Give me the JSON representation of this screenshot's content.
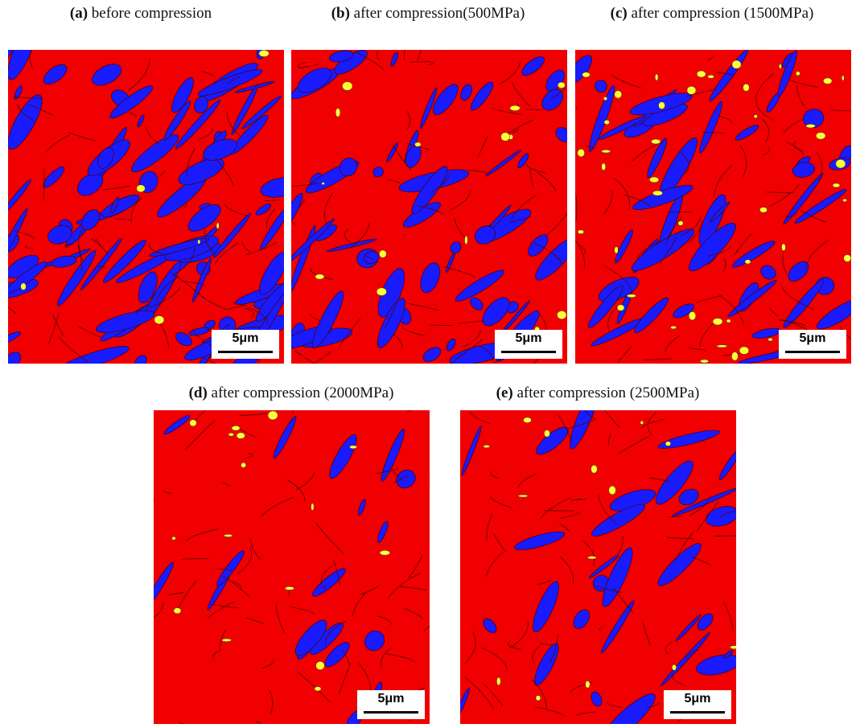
{
  "panels": [
    {
      "label": "(a)",
      "caption": "before compression",
      "scale_bar": "5μm"
    },
    {
      "label": "(b)",
      "caption": "after compression(500MPa)",
      "scale_bar": "5μm"
    },
    {
      "label": "(c)",
      "caption": "after compression (1500MPa)",
      "scale_bar": "5μm"
    },
    {
      "label": "(d)",
      "caption": "after compression (2000MPa)",
      "scale_bar": "5μm"
    },
    {
      "label": "(e)",
      "caption": "after compression (2500MPa)",
      "scale_bar": "5μm"
    }
  ]
}
